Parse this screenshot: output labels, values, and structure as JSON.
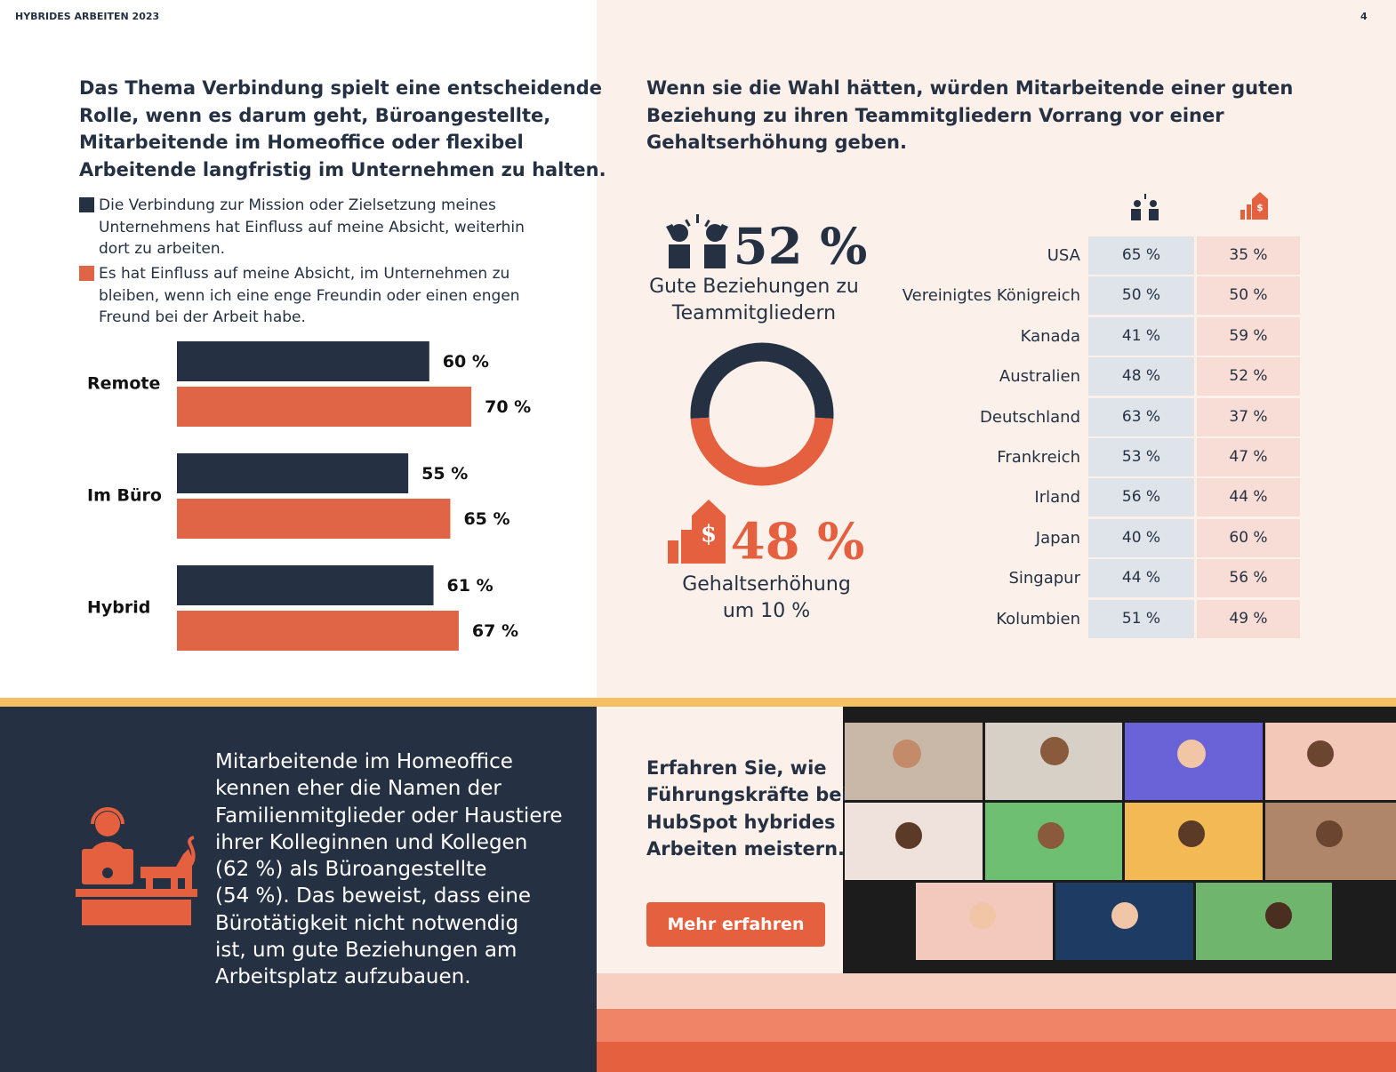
{
  "header": {
    "title": "HYBRIDES ARBEITEN 2023",
    "page": "4"
  },
  "left": {
    "title": [
      "Das Thema Verbindung spielt eine entscheidende",
      "Rolle, wenn es darum geht, Büroangestellte,",
      "Mitarbeitende im Homeoffice oder flexibel",
      "Arbeitende langfristig im Unternehmen zu halten."
    ]
  },
  "chart_data": [
    {
      "type": "bar",
      "orientation": "horizontal",
      "categories": [
        "Remote",
        "Im Büro",
        "Hybrid"
      ],
      "series": [
        {
          "name": "Die Verbindung zur Mission oder Zielsetzung meines Unternehmens hat Einfluss auf meine Absicht, weiterhin dort zu arbeiten.",
          "color": "#253142",
          "values": [
            60,
            55,
            61
          ],
          "value_labels": [
            "60 %",
            "55 %",
            "61 %"
          ]
        },
        {
          "name": "Es hat Einfluss auf meine Absicht, im Unternehmen zu bleiben, wenn ich eine enge Freundin oder einen engen Freund bei der Arbeit habe.",
          "color": "#e06446",
          "values": [
            70,
            65,
            67
          ],
          "value_labels": [
            "70 %",
            "65 %",
            "67 %"
          ]
        }
      ]
    },
    {
      "type": "pie",
      "donut": true,
      "categories": [
        "Gute Beziehungen zu Teammitgliedern",
        "Gehaltserhöhung um 10 %"
      ],
      "values": [
        52,
        48
      ],
      "value_labels": [
        "52 %",
        "48 %"
      ],
      "colors": [
        "#253142",
        "#e4603f"
      ]
    }
  ],
  "right": {
    "title": [
      "Wenn sie die Wahl hätten, würden Mitarbeitende einer guten",
      "Beziehung zu ihren Teammitgliedern Vorrang vor einer",
      "Gehaltserhöhung geben."
    ]
  },
  "table": {
    "rows": [
      [
        "USA",
        "65 %",
        "35 %"
      ],
      [
        "Vereinigtes Königreich",
        "50 %",
        "50 %"
      ],
      [
        "Kanada",
        "41 %",
        "59 %"
      ],
      [
        "Australien",
        "48 %",
        "52 %"
      ],
      [
        "Deutschland",
        "63 %",
        "37 %"
      ],
      [
        "Frankreich",
        "53 %",
        "47 %"
      ],
      [
        "Irland",
        "56 %",
        "44 %"
      ],
      [
        "Japan",
        "40 %",
        "60 %"
      ],
      [
        "Singapur",
        "44 %",
        "56 %"
      ],
      [
        "Kolumbien",
        "51 %",
        "49 %"
      ]
    ]
  },
  "callout": {
    "text": [
      "Mitarbeitende im Homeoffice",
      "kennen eher die Namen der",
      "Familienmitglieder oder Haustiere",
      "ihrer Kolleginnen und Kollegen",
      "(62 %) als Büroangestellte",
      "(54 %). Das beweist, dass eine",
      "Bürotätigkeit nicht notwendig",
      "ist, um gute Beziehungen am",
      "Arbeitsplatz aufzubauen."
    ]
  },
  "promo": {
    "text": [
      "Erfahren Sie, wie",
      "Führungskräfte bei",
      "HubSpot hybrides",
      "Arbeiten meistern."
    ],
    "button": "Mehr erfahren"
  }
}
